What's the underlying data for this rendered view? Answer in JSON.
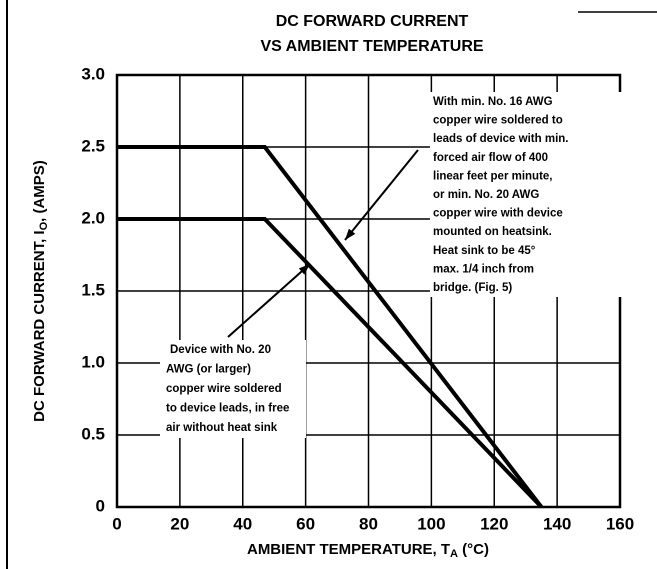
{
  "chart_data": {
    "type": "line",
    "title": [
      "DC FORWARD CURRENT",
      "VS AMBIENT TEMPERATURE"
    ],
    "x_label": [
      "AMBIENT TEMPERATURE, T",
      "A",
      " (°C)"
    ],
    "y_label": [
      "DC FORWARD CURRENT, I",
      "O",
      ", (AMPS)"
    ],
    "xlim": [
      0,
      160
    ],
    "xticks": [
      0,
      20,
      40,
      60,
      80,
      100,
      120,
      140,
      160
    ],
    "ylim": [
      0,
      3
    ],
    "yticks": [
      0,
      0.5,
      {
        "value": 1,
        "label": "1.0"
      },
      1.5,
      {
        "value": 2,
        "label": "2.0"
      },
      2.5,
      {
        "value": 3,
        "label": "3.0"
      }
    ],
    "grid": true,
    "series": [
      {
        "color": "#000000",
        "x": [
          0,
          47,
          135
        ],
        "values": [
          2.5,
          2.5,
          0
        ]
      },
      {
        "color": "#000000",
        "x": [
          0,
          47,
          135
        ],
        "values": [
          2.0,
          2.0,
          0
        ]
      }
    ],
    "annotations": [
      [
        "With min. No. 16 AWG",
        "copper wire soldered to",
        "leads of device with min.",
        "forced air flow of 400",
        "linear feet per minute,",
        "or min. No. 20 AWG",
        "copper wire with device",
        "mounted on heatsink.",
        "Heat sink to be 45°",
        "max. 1/4 inch from",
        "bridge. (Fig. 5)"
      ],
      [
        "Device with No. 20",
        "AWG (or larger)",
        "copper wire soldered",
        "to device leads, in free",
        "air without heat sink"
      ]
    ]
  }
}
